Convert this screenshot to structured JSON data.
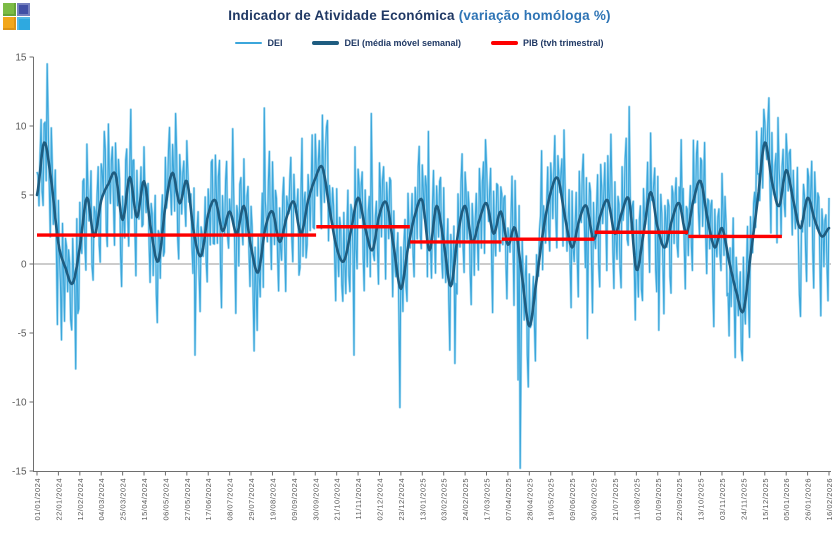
{
  "logo": {
    "name": "colored-squares-logo",
    "squares": [
      "#7CBB45",
      "#4150A5",
      "#F2A71B",
      "#2EA9E0"
    ]
  },
  "title": {
    "main": "Indicador de Atividade Económica",
    "highlight": "(variação homóloga %)"
  },
  "legend": [
    {
      "label": "DEI",
      "color": "#3BA6DB",
      "thickness": 2
    },
    {
      "label": "DEI (média móvel semanal)",
      "color": "#1E5C80",
      "thickness": 3.5
    },
    {
      "label": "PIB (tvh trimestral)",
      "color": "#FE0000",
      "thickness": 3.5
    }
  ],
  "colors": {
    "daily": "#3BA6DB",
    "daily_halo": "#A9DCF2",
    "ma": "#1E5C80",
    "pib": "#FE0000",
    "title_main": "#1F3864",
    "title_highlight": "#2E74B5",
    "axis_text": "#595959",
    "spine": "#6E6E6E",
    "zero_line": "#999999",
    "background": "#FFFFFF"
  },
  "chart_data": {
    "type": "line",
    "title": "Indicador de Atividade Económica (variação homóloga %)",
    "xlabel": "",
    "ylabel": "",
    "ylim": [
      -15,
      15
    ],
    "yticks": [
      15,
      10,
      5,
      0,
      -5,
      -10,
      -15
    ],
    "grid": "zero-line-only",
    "legend_position": "top-center",
    "x_start_date": "01/01/2024",
    "x_end_date": "16/02/2026",
    "x_tick_interval_days": 21,
    "n_days": 777,
    "x_labels": [
      "01/01/2024",
      "22/01/2024",
      "12/02/2024",
      "04/03/2024",
      "25/03/2024",
      "15/04/2024",
      "06/05/2024",
      "27/05/2024",
      "17/06/2024",
      "08/07/2024",
      "29/07/2024",
      "19/08/2024",
      "09/09/2024",
      "30/09/2024",
      "21/10/2024",
      "11/11/2024",
      "02/12/2024",
      "23/12/2024",
      "13/01/2025",
      "03/02/2025",
      "24/02/2025",
      "17/03/2025",
      "07/04/2025",
      "28/04/2025",
      "19/05/2025",
      "09/06/2025",
      "30/06/2025",
      "21/07/2025",
      "11/08/2025",
      "01/09/2025",
      "22/09/2025",
      "13/10/2025",
      "03/11/2025",
      "24/11/2025",
      "15/12/2025",
      "05/01/2026",
      "26/01/2026",
      "16/02/2026"
    ],
    "series": [
      {
        "name": "DEI",
        "kind": "daily-noisy-line",
        "description": "Daily economic activity indicator, y/y % change; very noisy, oscillates around the weekly moving average. Extremes: +14.5 (11/01/2024), -14.8 (approx. 20/04/2025), -10.4 (22/12/2024)."
      },
      {
        "name": "DEI (média móvel semanal)",
        "kind": "smooth-line",
        "day_step": 7,
        "weekly_values": [
          5.0,
          8.8,
          6.0,
          1.5,
          -0.3,
          -1.4,
          1.2,
          4.8,
          2.0,
          4.6,
          5.8,
          6.5,
          3.2,
          6.3,
          3.4,
          6.0,
          2.4,
          0.2,
          4.2,
          6.6,
          4.4,
          6.0,
          2.2,
          0.6,
          3.6,
          4.6,
          2.4,
          3.8,
          2.2,
          4.2,
          1.2,
          -0.6,
          2.6,
          3.8,
          1.6,
          3.4,
          4.5,
          2.2,
          4.6,
          6.2,
          7.0,
          4.0,
          1.2,
          0.2,
          2.4,
          4.8,
          2.6,
          1.0,
          3.6,
          4.4,
          1.2,
          -1.8,
          1.2,
          3.6,
          4.6,
          1.0,
          4.2,
          1.6,
          -1.6,
          2.2,
          4.2,
          1.6,
          3.2,
          4.4,
          2.2,
          3.8,
          1.4,
          2.6,
          -1.0,
          -4.5,
          -1.2,
          2.6,
          5.2,
          6.2,
          3.4,
          1.2,
          3.2,
          4.2,
          1.8,
          3.6,
          4.6,
          2.2,
          3.8,
          4.6,
          -0.4,
          2.2,
          5.2,
          2.6,
          1.2,
          3.2,
          4.4,
          2.2,
          4.6,
          6.0,
          3.2,
          1.2,
          2.6,
          0.2,
          -2.0,
          -3.4,
          0.6,
          4.6,
          8.8,
          6.0,
          4.2,
          6.8,
          4.6,
          2.6,
          4.8,
          3.2,
          2.0,
          2.6
        ]
      },
      {
        "name": "PIB (tvh trimestral)",
        "kind": "quarterly-step-segments",
        "segments": [
          {
            "quarter": "2024Q1",
            "start": "01/01/2024",
            "end": "31/03/2024",
            "start_day": 0,
            "end_day": 90,
            "value": 2.1
          },
          {
            "quarter": "2024Q2",
            "start": "01/04/2024",
            "end": "30/06/2024",
            "start_day": 91,
            "end_day": 181,
            "value": 2.1
          },
          {
            "quarter": "2024Q3",
            "start": "01/07/2024",
            "end": "30/09/2024",
            "start_day": 182,
            "end_day": 273,
            "value": 2.1
          },
          {
            "quarter": "2024Q4",
            "start": "01/10/2024",
            "end": "31/12/2024",
            "start_day": 274,
            "end_day": 365,
            "value": 2.7
          },
          {
            "quarter": "2025Q1",
            "start": "01/01/2025",
            "end": "31/03/2025",
            "start_day": 366,
            "end_day": 455,
            "value": 1.6
          },
          {
            "quarter": "2025Q2",
            "start": "01/04/2025",
            "end": "30/06/2025",
            "start_day": 456,
            "end_day": 546,
            "value": 1.8
          },
          {
            "quarter": "2025Q3",
            "start": "01/07/2025",
            "end": "30/09/2025",
            "start_day": 547,
            "end_day": 638,
            "value": 2.3
          },
          {
            "quarter": "2025Q4",
            "start": "01/10/2025",
            "end": "31/12/2025",
            "start_day": 639,
            "end_day": 730,
            "value": 2.0
          }
        ]
      }
    ],
    "daily_synthesis": {
      "seed": 97531,
      "weekly_pattern": [
        2.6,
        0.6,
        -1.4,
        1.8,
        3.0,
        -2.2,
        -4.4
      ],
      "jitter": 2.6,
      "clamp": [
        -14.9,
        14.6
      ],
      "events": {
        "10": 14.5,
        "24": -5.5,
        "38": -7.6,
        "66": 9.6,
        "92": 11.2,
        "136": 10.9,
        "155": -6.6,
        "192": 9.8,
        "213": -6.3,
        "223": 11.3,
        "260": 9.1,
        "285": 10.4,
        "311": -6.6,
        "328": 10.9,
        "356": -10.4,
        "384": 9.6,
        "410": -7.2,
        "440": 9.0,
        "472": -8.4,
        "474": -14.8,
        "481": -6.6,
        "495": 8.2,
        "517": 9.7,
        "540": -5.4,
        "563": 9.4,
        "581": 11.4,
        "610": -4.8,
        "632": 9.0,
        "655": 8.8,
        "679": -5.2,
        "692": -7.0,
        "706": 9.6,
        "713": 11.2,
        "717": 10.2,
        "727": 10.6,
        "749": -3.8,
        "756": 6.9
      }
    }
  }
}
